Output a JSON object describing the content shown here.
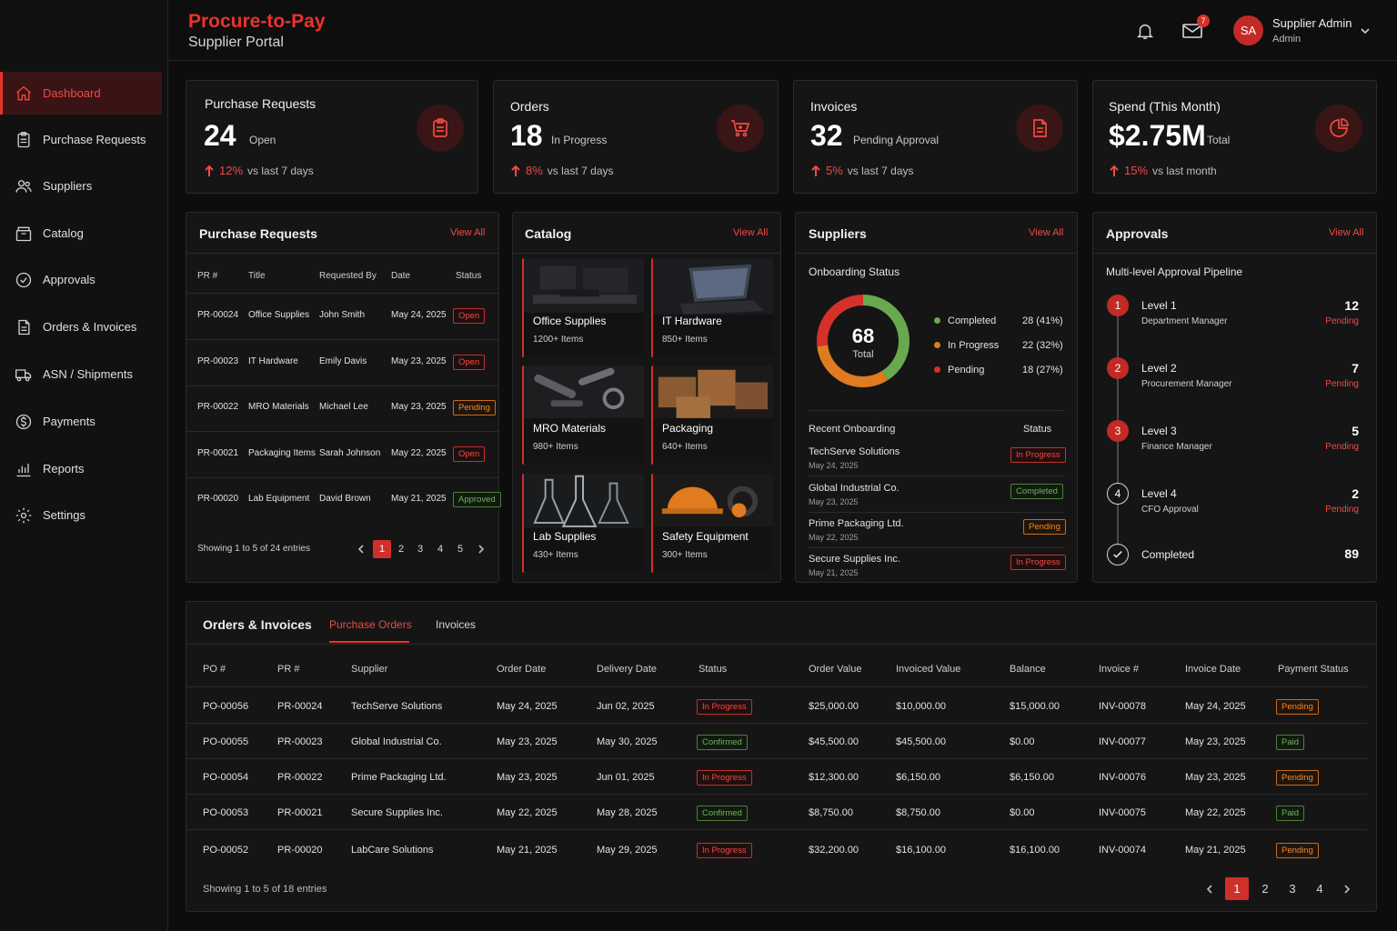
{
  "header": {
    "title": "Procure-to-Pay",
    "subtitle": "Supplier Portal",
    "mail_count": "7",
    "avatar_initials": "SA",
    "user_name": "Supplier Admin",
    "user_role": "Admin"
  },
  "sidebar": {
    "items": [
      {
        "label": "Dashboard",
        "icon": "home-icon"
      },
      {
        "label": "Purchase Requests",
        "icon": "clipboard-icon"
      },
      {
        "label": "Suppliers",
        "icon": "users-icon"
      },
      {
        "label": "Catalog",
        "icon": "box-icon"
      },
      {
        "label": "Approvals",
        "icon": "check-circle-icon"
      },
      {
        "label": "Orders & Invoices",
        "icon": "document-icon"
      },
      {
        "label": "ASN / Shipments",
        "icon": "truck-icon"
      },
      {
        "label": "Payments",
        "icon": "dollar-icon"
      },
      {
        "label": "Reports",
        "icon": "bar-chart-icon"
      },
      {
        "label": "Settings",
        "icon": "gear-icon"
      }
    ]
  },
  "kpis": [
    {
      "label": "Purchase Requests",
      "value": "24",
      "status": "Open",
      "pct": "12%",
      "delta": "vs last 7 days",
      "icon": "clipboard-icon"
    },
    {
      "label": "Orders",
      "value": "18",
      "status": "In Progress",
      "pct": "8%",
      "delta": "vs last 7 days",
      "icon": "cart-icon"
    },
    {
      "label": "Invoices",
      "value": "32",
      "status": "Pending Approval",
      "pct": "5%",
      "delta": "vs last 7 days",
      "icon": "invoice-icon"
    },
    {
      "label": "Spend (This Month)",
      "value": "$2.75M",
      "status": "Total",
      "pct": "15%",
      "delta": "vs last month",
      "icon": "pie-chart-icon"
    }
  ],
  "view_all": "View All",
  "pr_panel": {
    "title": "Purchase Requests",
    "headers": [
      "PR #",
      "Title",
      "Requested By",
      "Date",
      "Status"
    ],
    "rows": [
      {
        "pr": "PR-00024",
        "title": "Office Supplies",
        "by": "John Smith",
        "date": "May 24, 2025",
        "status": "Open"
      },
      {
        "pr": "PR-00023",
        "title": "IT Hardware",
        "by": "Emily Davis",
        "date": "May 23, 2025",
        "status": "Open"
      },
      {
        "pr": "PR-00022",
        "title": "MRO Materials",
        "by": "Michael Lee",
        "date": "May 23, 2025",
        "status": "Pending"
      },
      {
        "pr": "PR-00021",
        "title": "Packaging Items",
        "by": "Sarah Johnson",
        "date": "May 22, 2025",
        "status": "Open"
      },
      {
        "pr": "PR-00020",
        "title": "Lab Equipment",
        "by": "David Brown",
        "date": "May 21, 2025",
        "status": "Approved"
      }
    ],
    "footer": "Showing 1 to 5 of 24 entries",
    "pages": [
      "1",
      "2",
      "3",
      "4",
      "5"
    ]
  },
  "catalog": {
    "title": "Catalog",
    "items": [
      {
        "name": "Office Supplies",
        "count": "1200+ Items"
      },
      {
        "name": "IT Hardware",
        "count": "850+ Items"
      },
      {
        "name": "MRO Materials",
        "count": "980+ Items"
      },
      {
        "name": "Packaging",
        "count": "640+ Items"
      },
      {
        "name": "Lab Supplies",
        "count": "430+ Items"
      },
      {
        "name": "Safety Equipment",
        "count": "300+ Items"
      }
    ]
  },
  "suppliers": {
    "title": "Suppliers",
    "subtitle": "Onboarding Status",
    "total": "68",
    "total_label": "Total",
    "legend": [
      {
        "label": "Completed",
        "value": "28 (41%)",
        "color": "#6aa84f",
        "fraction": 0.41
      },
      {
        "label": "In Progress",
        "value": "22 (32%)",
        "color": "#e07b1f",
        "fraction": 0.32
      },
      {
        "label": "Pending",
        "value": "18 (27%)",
        "color": "#d6302a",
        "fraction": 0.27
      }
    ],
    "recent_title": "Recent Onboarding",
    "status_header": "Status",
    "recent": [
      {
        "name": "TechServe Solutions",
        "date": "May 24, 2025",
        "status": "In Progress"
      },
      {
        "name": "Global Industrial Co.",
        "date": "May 23, 2025",
        "status": "Completed"
      },
      {
        "name": "Prime Packaging Ltd.",
        "date": "May 22, 2025",
        "status": "Pending"
      },
      {
        "name": "Secure Supplies Inc.",
        "date": "May 21, 2025",
        "status": "In Progress"
      }
    ]
  },
  "approvals": {
    "title": "Approvals",
    "subtitle": "Multi-level Approval Pipeline",
    "levels": [
      {
        "num": "1",
        "name": "Level 1",
        "role": "Department Manager",
        "count": "12",
        "status": "Pending"
      },
      {
        "num": "2",
        "name": "Level 2",
        "role": "Procurement Manager",
        "count": "7",
        "status": "Pending"
      },
      {
        "num": "3",
        "name": "Level 3",
        "role": "Finance Manager",
        "count": "5",
        "status": "Pending"
      },
      {
        "num": "4",
        "name": "Level 4",
        "role": "CFO Approval",
        "count": "2",
        "status": "Pending"
      }
    ],
    "completed_label": "Completed",
    "completed_count": "89"
  },
  "orders": {
    "title": "Orders & Invoices",
    "tabs": [
      "Purchase Orders",
      "Invoices"
    ],
    "headers": [
      "PO #",
      "PR #",
      "Supplier",
      "Order Date",
      "Delivery Date",
      "Status",
      "Order Value",
      "Invoiced Value",
      "Balance",
      "Invoice #",
      "Invoice Date",
      "Payment Status"
    ],
    "rows": [
      {
        "po": "PO-00056",
        "pr": "PR-00024",
        "supplier": "TechServe Solutions",
        "order_date": "May 24, 2025",
        "delivery": "Jun 02, 2025",
        "status": "In Progress",
        "value": "$25,000.00",
        "invoiced": "$10,000.00",
        "balance": "$15,000.00",
        "invoice": "INV-00078",
        "invoice_date": "May 24, 2025",
        "payment": "Pending"
      },
      {
        "po": "PO-00055",
        "pr": "PR-00023",
        "supplier": "Global Industrial Co.",
        "order_date": "May 23, 2025",
        "delivery": "May 30, 2025",
        "status": "Confirmed",
        "value": "$45,500.00",
        "invoiced": "$45,500.00",
        "balance": "$0.00",
        "invoice": "INV-00077",
        "invoice_date": "May 23, 2025",
        "payment": "Paid"
      },
      {
        "po": "PO-00054",
        "pr": "PR-00022",
        "supplier": "Prime Packaging Ltd.",
        "order_date": "May 23, 2025",
        "delivery": "Jun 01, 2025",
        "status": "In Progress",
        "value": "$12,300.00",
        "invoiced": "$6,150.00",
        "balance": "$6,150.00",
        "invoice": "INV-00076",
        "invoice_date": "May 23, 2025",
        "payment": "Pending"
      },
      {
        "po": "PO-00053",
        "pr": "PR-00021",
        "supplier": "Secure Supplies Inc.",
        "order_date": "May 22, 2025",
        "delivery": "May 28, 2025",
        "status": "Confirmed",
        "value": "$8,750.00",
        "invoiced": "$8,750.00",
        "balance": "$0.00",
        "invoice": "INV-00075",
        "invoice_date": "May 22, 2025",
        "payment": "Paid"
      },
      {
        "po": "PO-00052",
        "pr": "PR-00020",
        "supplier": "LabCare Solutions",
        "order_date": "May 21, 2025",
        "delivery": "May 29, 2025",
        "status": "In Progress",
        "value": "$32,200.00",
        "invoiced": "$16,100.00",
        "balance": "$16,100.00",
        "invoice": "INV-00074",
        "invoice_date": "May 21, 2025",
        "payment": "Pending"
      }
    ],
    "footer": "Showing 1 to 5 of 18 entries",
    "pages": [
      "1",
      "2",
      "3",
      "4"
    ]
  }
}
